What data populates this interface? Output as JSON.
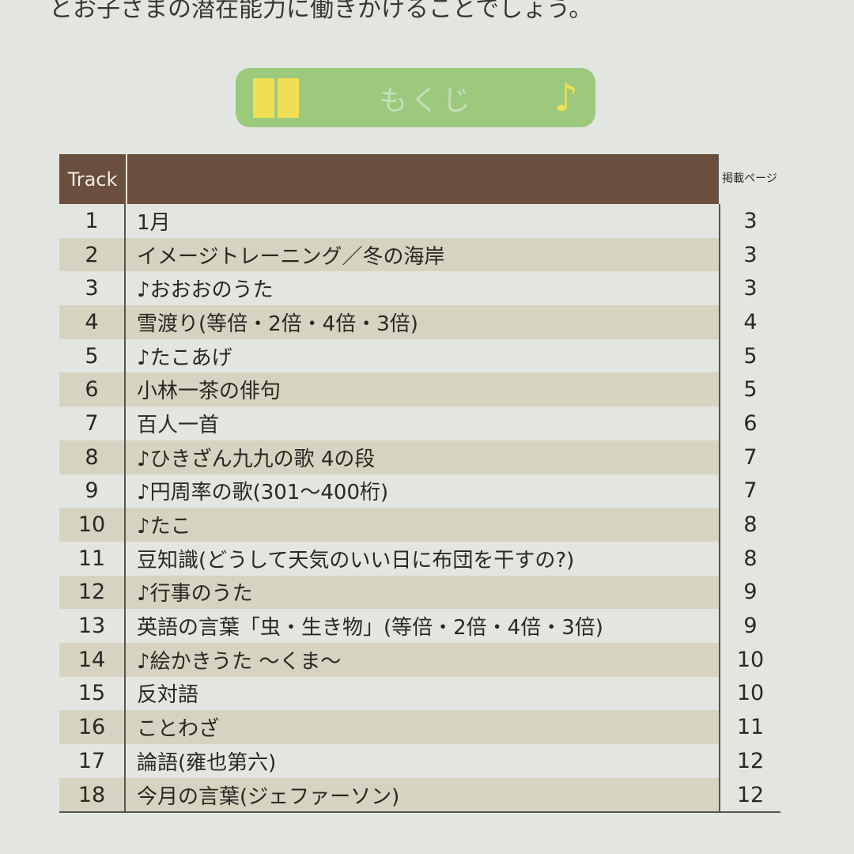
{
  "intro_text": "とお子さまの潜在能力に働きかけることでしょう。",
  "banner": {
    "title": "もくじ",
    "left_icon": "book-icon",
    "right_icon": "music-note-icon"
  },
  "table": {
    "headers": {
      "track": "Track",
      "title": "",
      "page": "掲載ページ"
    },
    "rows": [
      {
        "track": "1",
        "title": "1月",
        "page": "3"
      },
      {
        "track": "2",
        "title": "イメージトレーニング／冬の海岸",
        "page": "3"
      },
      {
        "track": "3",
        "title": "♪おおおのうた",
        "page": "3"
      },
      {
        "track": "4",
        "title": "雪渡り(等倍・2倍・4倍・3倍)",
        "page": "4"
      },
      {
        "track": "5",
        "title": "♪たこあげ",
        "page": "5"
      },
      {
        "track": "6",
        "title": "小林一茶の俳句",
        "page": "5"
      },
      {
        "track": "7",
        "title": "百人一首",
        "page": "6"
      },
      {
        "track": "8",
        "title": "♪ひきざん九九の歌 4の段",
        "page": "7"
      },
      {
        "track": "9",
        "title": "♪円周率の歌(301～400桁)",
        "page": "7"
      },
      {
        "track": "10",
        "title": "♪たこ",
        "page": "8"
      },
      {
        "track": "11",
        "title": "豆知識(どうして天気のいい日に布団を干すの?)",
        "page": "8"
      },
      {
        "track": "12",
        "title": "♪行事のうた",
        "page": "9"
      },
      {
        "track": "13",
        "title": "英語の言葉「虫・生き物」(等倍・2倍・4倍・3倍)",
        "page": "9"
      },
      {
        "track": "14",
        "title": "♪絵かきうた ～くま～",
        "page": "10"
      },
      {
        "track": "15",
        "title": "反対語",
        "page": "10"
      },
      {
        "track": "16",
        "title": "ことわざ",
        "page": "11"
      },
      {
        "track": "17",
        "title": "論語(雍也第六)",
        "page": "12"
      },
      {
        "track": "18",
        "title": "今月の言葉(ジェファーソン)",
        "page": "12"
      }
    ]
  }
}
